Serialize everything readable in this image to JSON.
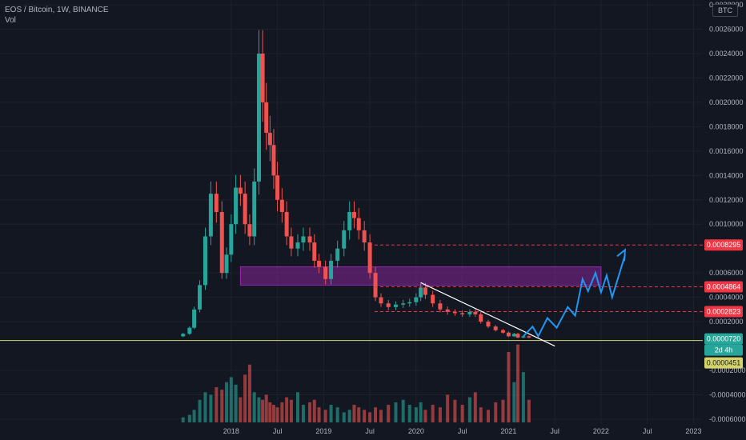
{
  "header": {
    "symbol_line": "EOS / Bitcoin, 1W, BINANCE",
    "volume_label": "Vol"
  },
  "currency_badge": "BTC",
  "colors": {
    "background": "#131722",
    "grid": "#1e222d",
    "axis_text": "#b2b5be",
    "up_candle": "#26a69a",
    "down_candle": "#ef5350",
    "support_zone": "#9c27b0",
    "trendline": "#ffffff",
    "projection": "#2196f3",
    "horizontal_line": "#d4d46a",
    "price_marker_last": "#26a69a",
    "price_marker_level": "#f23645",
    "countdown_marker": "#d4d46a"
  },
  "chart_data": {
    "type": "candlestick",
    "title": "EOS / Bitcoin, 1W, BINANCE",
    "ylim": [
      -0.00064,
      0.00284
    ],
    "y_ticks": [
      "0.0028000",
      "0.0026000",
      "0.0024000",
      "0.0022000",
      "0.0020000",
      "0.0018000",
      "0.0016000",
      "0.0014000",
      "0.0012000",
      "0.0010000",
      "0.0006000",
      "0.0004000",
      "0.0002000",
      "-0.0002000",
      "-0.0004000",
      "-0.0006000"
    ],
    "y_tick_values": [
      0.0028,
      0.0026,
      0.0024,
      0.0022,
      0.002,
      0.0018,
      0.0016,
      0.0014,
      0.0012,
      0.001,
      0.0006,
      0.0004,
      0.0002,
      -0.0002,
      -0.0004,
      -0.0006
    ],
    "x_ticks": [
      "2018",
      "Jul",
      "2019",
      "Jul",
      "2020",
      "Jul",
      "2021",
      "Jul",
      "2022",
      "Jul",
      "2023"
    ],
    "x_tick_values": [
      2018.0,
      2018.5,
      2019.0,
      2019.5,
      2020.0,
      2020.5,
      2021.0,
      2021.5,
      2022.0,
      2022.5,
      2023.0
    ],
    "xlim": [
      2015.5,
      2023.1
    ],
    "price_series": [
      [
        2017.48,
        0.0001
      ],
      [
        2017.55,
        0.00015
      ],
      [
        2017.6,
        0.0003
      ],
      [
        2017.66,
        0.0005
      ],
      [
        2017.72,
        0.0009
      ],
      [
        2017.78,
        0.00125
      ],
      [
        2017.84,
        0.0011
      ],
      [
        2017.9,
        0.0006
      ],
      [
        2017.95,
        0.00075
      ],
      [
        2018.0,
        0.001
      ],
      [
        2018.05,
        0.0013
      ],
      [
        2018.1,
        0.00125
      ],
      [
        2018.15,
        0.001
      ],
      [
        2018.2,
        0.0009
      ],
      [
        2018.25,
        0.00135
      ],
      [
        2018.3,
        0.0024
      ],
      [
        2018.34,
        0.002
      ],
      [
        2018.38,
        0.00175
      ],
      [
        2018.42,
        0.00165
      ],
      [
        2018.46,
        0.0014
      ],
      [
        2018.5,
        0.0012
      ],
      [
        2018.55,
        0.0011
      ],
      [
        2018.6,
        0.0009
      ],
      [
        2018.65,
        0.0008
      ],
      [
        2018.72,
        0.00085
      ],
      [
        2018.78,
        0.0009
      ],
      [
        2018.85,
        0.00085
      ],
      [
        2018.9,
        0.0007
      ],
      [
        2018.95,
        0.00065
      ],
      [
        2019.02,
        0.00055
      ],
      [
        2019.08,
        0.0007
      ],
      [
        2019.15,
        0.0008
      ],
      [
        2019.22,
        0.00095
      ],
      [
        2019.28,
        0.0011
      ],
      [
        2019.33,
        0.00105
      ],
      [
        2019.38,
        0.00095
      ],
      [
        2019.44,
        0.00085
      ],
      [
        2019.5,
        0.0006
      ],
      [
        2019.56,
        0.0004
      ],
      [
        2019.62,
        0.00035
      ],
      [
        2019.7,
        0.00032
      ],
      [
        2019.78,
        0.00034
      ],
      [
        2019.86,
        0.00035
      ],
      [
        2019.93,
        0.00036
      ],
      [
        2020.0,
        0.0004
      ],
      [
        2020.05,
        0.00048
      ],
      [
        2020.1,
        0.00042
      ],
      [
        2020.18,
        0.00035
      ],
      [
        2020.26,
        0.0003
      ],
      [
        2020.34,
        0.00028
      ],
      [
        2020.42,
        0.00027
      ],
      [
        2020.5,
        0.00026
      ],
      [
        2020.58,
        0.00028
      ],
      [
        2020.64,
        0.00026
      ],
      [
        2020.7,
        0.0002
      ],
      [
        2020.78,
        0.00016
      ],
      [
        2020.86,
        0.00013
      ],
      [
        2020.94,
        0.00011
      ],
      [
        2021.0,
        8e-05
      ],
      [
        2021.06,
        0.0001
      ],
      [
        2021.1,
        7e-05
      ],
      [
        2021.16,
        8e-05
      ],
      [
        2021.22,
        7e-05
      ]
    ],
    "volume_series": [
      4e-05,
      6e-05,
      0.0001,
      0.00018,
      0.00024,
      0.00022,
      0.00028,
      0.00026,
      0.00032,
      0.00036,
      0.0003,
      0.0002,
      0.00038,
      0.00046,
      0.00024,
      0.0002,
      0.00018,
      0.00022,
      0.00016,
      0.00014,
      0.00012,
      0.00016,
      0.0002,
      0.00018,
      0.00024,
      0.00014,
      0.00016,
      0.00018,
      0.00012,
      0.0001,
      0.00014,
      0.00012,
      8e-05,
      0.0001,
      0.00014,
      0.00012,
      0.0001,
      8e-05,
      0.00012,
      0.0001,
      0.00014,
      0.00016,
      0.00018,
      0.00014,
      0.00012,
      0.00016,
      0.0001,
      0.00014,
      0.00012,
      0.00022,
      0.00018,
      0.00014,
      0.0002,
      0.00024,
      0.00012,
      0.0001,
      0.00016,
      0.00018,
      0.00056,
      0.00032,
      0.00062,
      0.0004,
      0.00018
    ],
    "levels": [
      {
        "label": "0.0008295",
        "value": 0.0008295,
        "style": "dashed",
        "color": "#f23645"
      },
      {
        "label": "0.0004864",
        "value": 0.0004864,
        "style": "dashed",
        "color": "#f23645"
      },
      {
        "label": "0.0002823",
        "value": 0.0002823,
        "style": "dashed",
        "color": "#f23645"
      }
    ],
    "last_price": {
      "label": "0.0000720",
      "value": 7.2e-05,
      "countdown": "2d 4h"
    },
    "horizontal_line": {
      "label": "0.0000451",
      "value": 4.51e-05
    },
    "support_zone": {
      "x_from": 2018.1,
      "x_to": 2022.0,
      "y_from": 0.0005,
      "y_to": 0.00065
    },
    "trendline": {
      "x_from": 2020.05,
      "y_from": 0.00052,
      "x_to": 2021.5,
      "y_to": 0.0
    },
    "projection_path": [
      [
        2021.16,
        8e-05
      ],
      [
        2021.26,
        0.00016
      ],
      [
        2021.32,
        8e-05
      ],
      [
        2021.42,
        0.00023
      ],
      [
        2021.52,
        0.00015
      ],
      [
        2021.64,
        0.00032
      ],
      [
        2021.72,
        0.00025
      ],
      [
        2021.8,
        0.00055
      ],
      [
        2021.86,
        0.00045
      ],
      [
        2021.94,
        0.0006
      ],
      [
        2022.0,
        0.00044
      ],
      [
        2022.06,
        0.00058
      ],
      [
        2022.12,
        0.0004
      ],
      [
        2022.26,
        0.00075
      ]
    ]
  }
}
